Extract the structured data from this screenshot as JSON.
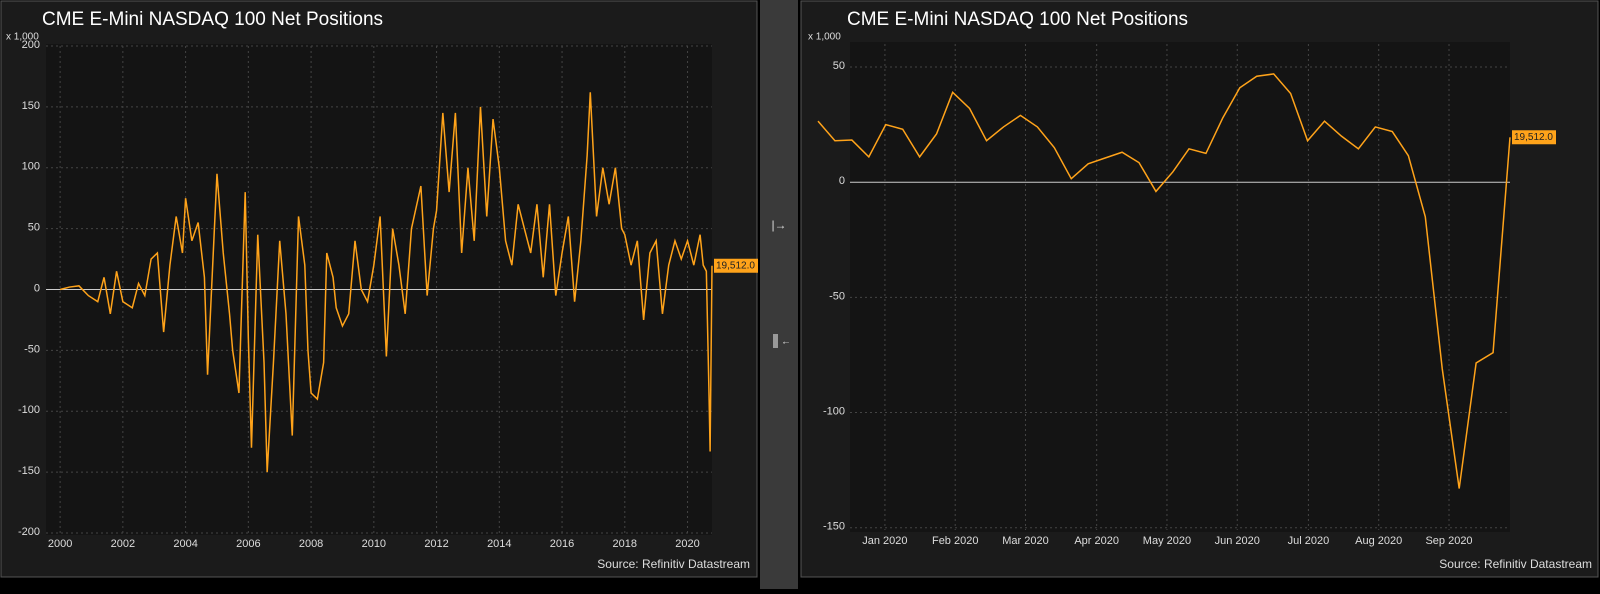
{
  "chart_data": [
    {
      "type": "line",
      "title": "CME E-Mini NASDAQ 100 Net Positions",
      "y_unit": "x 1,000",
      "source": "Source: Refinitiv Datastream",
      "xlim": [
        1999.55,
        2020.78
      ],
      "ylim": [
        -200,
        200
      ],
      "xticks": [
        2000,
        2002,
        2004,
        2006,
        2008,
        2010,
        2012,
        2014,
        2016,
        2018,
        2020
      ],
      "yticks": [
        -200,
        -150,
        -100,
        -50,
        0,
        50,
        100,
        150,
        200
      ],
      "grid": true,
      "x": [
        2000.0,
        2000.3,
        2000.6,
        2000.9,
        2001.2,
        2001.4,
        2001.6,
        2001.8,
        2002.0,
        2002.3,
        2002.5,
        2002.7,
        2002.9,
        2003.1,
        2003.3,
        2003.5,
        2003.7,
        2003.9,
        2004.0,
        2004.2,
        2004.4,
        2004.6,
        2004.7,
        2004.9,
        2005.0,
        2005.2,
        2005.4,
        2005.5,
        2005.7,
        2005.9,
        2006.0,
        2006.1,
        2006.3,
        2006.5,
        2006.6,
        2006.8,
        2007.0,
        2007.2,
        2007.4,
        2007.6,
        2007.8,
        2007.9,
        2008.0,
        2008.2,
        2008.4,
        2008.5,
        2008.7,
        2008.8,
        2009.0,
        2009.2,
        2009.4,
        2009.6,
        2009.8,
        2010.0,
        2010.2,
        2010.4,
        2010.6,
        2010.8,
        2011.0,
        2011.2,
        2011.5,
        2011.7,
        2011.9,
        2012.0,
        2012.2,
        2012.4,
        2012.6,
        2012.8,
        2013.0,
        2013.2,
        2013.4,
        2013.6,
        2013.8,
        2014.0,
        2014.2,
        2014.4,
        2014.6,
        2014.8,
        2015.0,
        2015.2,
        2015.4,
        2015.6,
        2015.8,
        2016.0,
        2016.2,
        2016.4,
        2016.6,
        2016.8,
        2016.9,
        2017.1,
        2017.3,
        2017.5,
        2017.7,
        2017.9,
        2018.0,
        2018.2,
        2018.4,
        2018.6,
        2018.8,
        2019.0,
        2019.2,
        2019.4,
        2019.6,
        2019.8,
        2020.0,
        2020.2,
        2020.4,
        2020.5,
        2020.6,
        2020.68,
        2020.72,
        2020.78
      ],
      "series": [
        {
          "color": "#ffa31a",
          "end_label": "19,512.0",
          "values": [
            0,
            2,
            3,
            -5,
            -10,
            10,
            -20,
            15,
            -10,
            -15,
            5,
            -5,
            25,
            30,
            -35,
            20,
            60,
            30,
            75,
            40,
            55,
            10,
            -70,
            40,
            95,
            30,
            -20,
            -50,
            -85,
            80,
            -40,
            -130,
            45,
            -60,
            -150,
            -60,
            40,
            -20,
            -120,
            60,
            20,
            -50,
            -85,
            -90,
            -60,
            30,
            10,
            -15,
            -30,
            -20,
            40,
            0,
            -10,
            20,
            60,
            -55,
            50,
            20,
            -20,
            50,
            85,
            -5,
            50,
            65,
            145,
            80,
            145,
            30,
            100,
            40,
            150,
            60,
            140,
            100,
            40,
            20,
            70,
            50,
            30,
            70,
            10,
            70,
            -5,
            30,
            60,
            -10,
            40,
            110,
            162,
            60,
            100,
            70,
            100,
            50,
            45,
            20,
            40,
            -25,
            30,
            40,
            -20,
            20,
            40,
            25,
            40,
            20,
            45,
            20,
            15,
            -80,
            -133,
            19.512
          ]
        }
      ]
    },
    {
      "type": "line",
      "title": "CME E-Mini NASDAQ 100 Net Positions",
      "y_unit": "x 1,000",
      "source": "Source: Refinitiv Datastream",
      "xlim": [
        2019.963,
        2020.78
      ],
      "ylim": [
        -151,
        60
      ],
      "xticks": [
        {
          "value": 2020.042,
          "label": "Jan 2020"
        },
        {
          "value": 2020.125,
          "label": "Feb 2020"
        },
        {
          "value": 2020.208,
          "label": "Mar 2020"
        },
        {
          "value": 2020.292,
          "label": "Apr 2020"
        },
        {
          "value": 2020.375,
          "label": "May 2020"
        },
        {
          "value": 2020.458,
          "label": "Jun 2020"
        },
        {
          "value": 2020.542,
          "label": "Jul 2020"
        },
        {
          "value": 2020.625,
          "label": "Aug 2020"
        },
        {
          "value": 2020.708,
          "label": "Sep 2020"
        }
      ],
      "yticks": [
        -150,
        -100,
        -50,
        0,
        50
      ],
      "grid": true,
      "x": [
        2019.963,
        2019.983,
        2020.003,
        2020.023,
        2020.043,
        2020.063,
        2020.083,
        2020.103,
        2020.122,
        2020.142,
        2020.162,
        2020.182,
        2020.202,
        2020.222,
        2020.242,
        2020.262,
        2020.282,
        2020.302,
        2020.322,
        2020.342,
        2020.362,
        2020.382,
        2020.401,
        2020.421,
        2020.441,
        2020.461,
        2020.481,
        2020.501,
        2020.521,
        2020.541,
        2020.561,
        2020.581,
        2020.601,
        2020.621,
        2020.641,
        2020.66,
        2020.68,
        2020.7,
        2020.72,
        2020.74,
        2020.76,
        2020.78
      ],
      "series": [
        {
          "color": "#ffa31a",
          "end_label": "19,512.0",
          "values": [
            26.5,
            18,
            18.3,
            11,
            25,
            23,
            11,
            21,
            39,
            32,
            18,
            24,
            29,
            24,
            15,
            1.5,
            8,
            10.5,
            13,
            8.5,
            -4,
            4.5,
            14.5,
            12.5,
            28,
            41,
            46,
            47,
            38.5,
            18,
            26.5,
            20,
            14.5,
            24,
            22,
            11.5,
            -15,
            -81,
            -133,
            -78.5,
            -74,
            19.512
          ]
        }
      ]
    }
  ]
}
